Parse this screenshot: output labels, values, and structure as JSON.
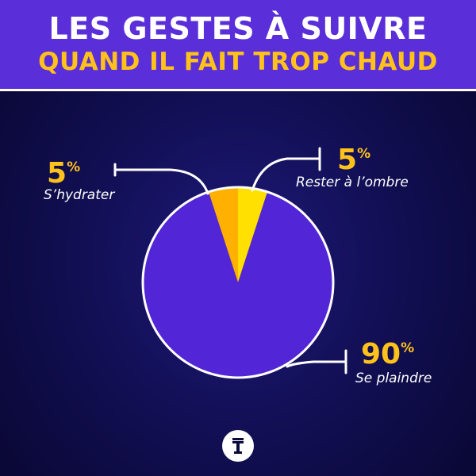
{
  "header": {
    "title_line1": "LES GESTES À SUIVRE",
    "title_line2": "QUAND IL FAIT TROP CHAUD"
  },
  "colors": {
    "header_bg": "#5a2ed8",
    "title_white": "#ffffff",
    "accent_yellow": "#ffc21a",
    "pie_main": "#5226d6",
    "slice_orange": "#ffb000",
    "slice_yellow": "#ffe000"
  },
  "chart_data": {
    "type": "pie",
    "slices": [
      {
        "label": "Rester à l’ombre",
        "value": 5,
        "value_text": "5",
        "suffix": "%",
        "color": "#ffe000"
      },
      {
        "label": "Se plaindre",
        "value": 90,
        "value_text": "90",
        "suffix": "%",
        "color": "#5226d6"
      },
      {
        "label": "S’hydrater",
        "value": 5,
        "value_text": "5",
        "suffix": "%",
        "color": "#ffb000"
      }
    ]
  },
  "logo_icon": "t-logo-icon"
}
